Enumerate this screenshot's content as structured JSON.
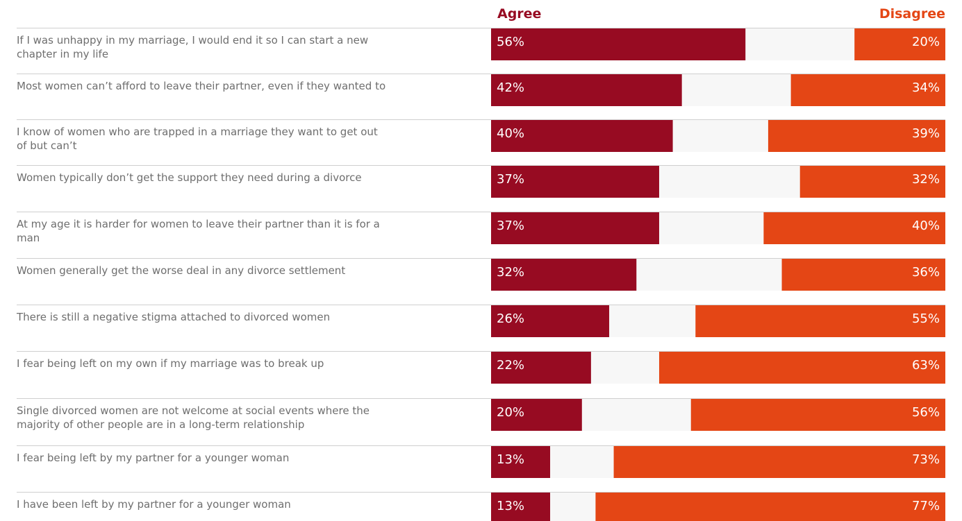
{
  "chart_data": {
    "type": "bar",
    "stacked": "diverging",
    "legend": [
      "Agree",
      "Disagree"
    ],
    "colors": {
      "agree": "#970B22",
      "neutral": "#F7F7F7",
      "disagree": "#E44615"
    },
    "categories": [
      [
        "If I was unhappy in my marriage, I would end it so I can start a new",
        "chapter in my life"
      ],
      [
        "Most women can’t afford to leave their partner, even if they wanted to"
      ],
      [
        "I know of women who are trapped in a marriage they want to get out",
        "of but can’t"
      ],
      [
        "Women typically don’t get the support they need during a divorce"
      ],
      [
        "At my age it is harder for women to leave their partner than it is for a",
        "man"
      ],
      [
        "Women generally get the worse deal in any divorce settlement"
      ],
      [
        "There is still a negative stigma attached to divorced women"
      ],
      [
        "I fear being left on my own if my marriage was to break up"
      ],
      [
        "Single divorced women are not welcome at social events where the",
        "majority of other people are in a long-term relationship"
      ],
      [
        "I fear being left by my partner for a younger woman"
      ],
      [
        "I have been left by my partner for a younger woman"
      ]
    ],
    "series": [
      {
        "name": "Agree",
        "values": [
          56,
          42,
          40,
          37,
          37,
          32,
          26,
          22,
          20,
          13,
          13
        ]
      },
      {
        "name": "Disagree",
        "values": [
          20,
          34,
          39,
          32,
          40,
          36,
          55,
          63,
          56,
          73,
          77
        ]
      }
    ],
    "value_labels": {
      "agree": [
        "56%",
        "42%",
        "40%",
        "37%",
        "37%",
        "32%",
        "26%",
        "22%",
        "20%",
        "13%",
        "13%"
      ],
      "disagree": [
        "20%",
        "34%",
        "39%",
        "32%",
        "40%",
        "36%",
        "55%",
        "63%",
        "56%",
        "73%",
        "77%"
      ]
    },
    "xlim": [
      0,
      100
    ]
  }
}
